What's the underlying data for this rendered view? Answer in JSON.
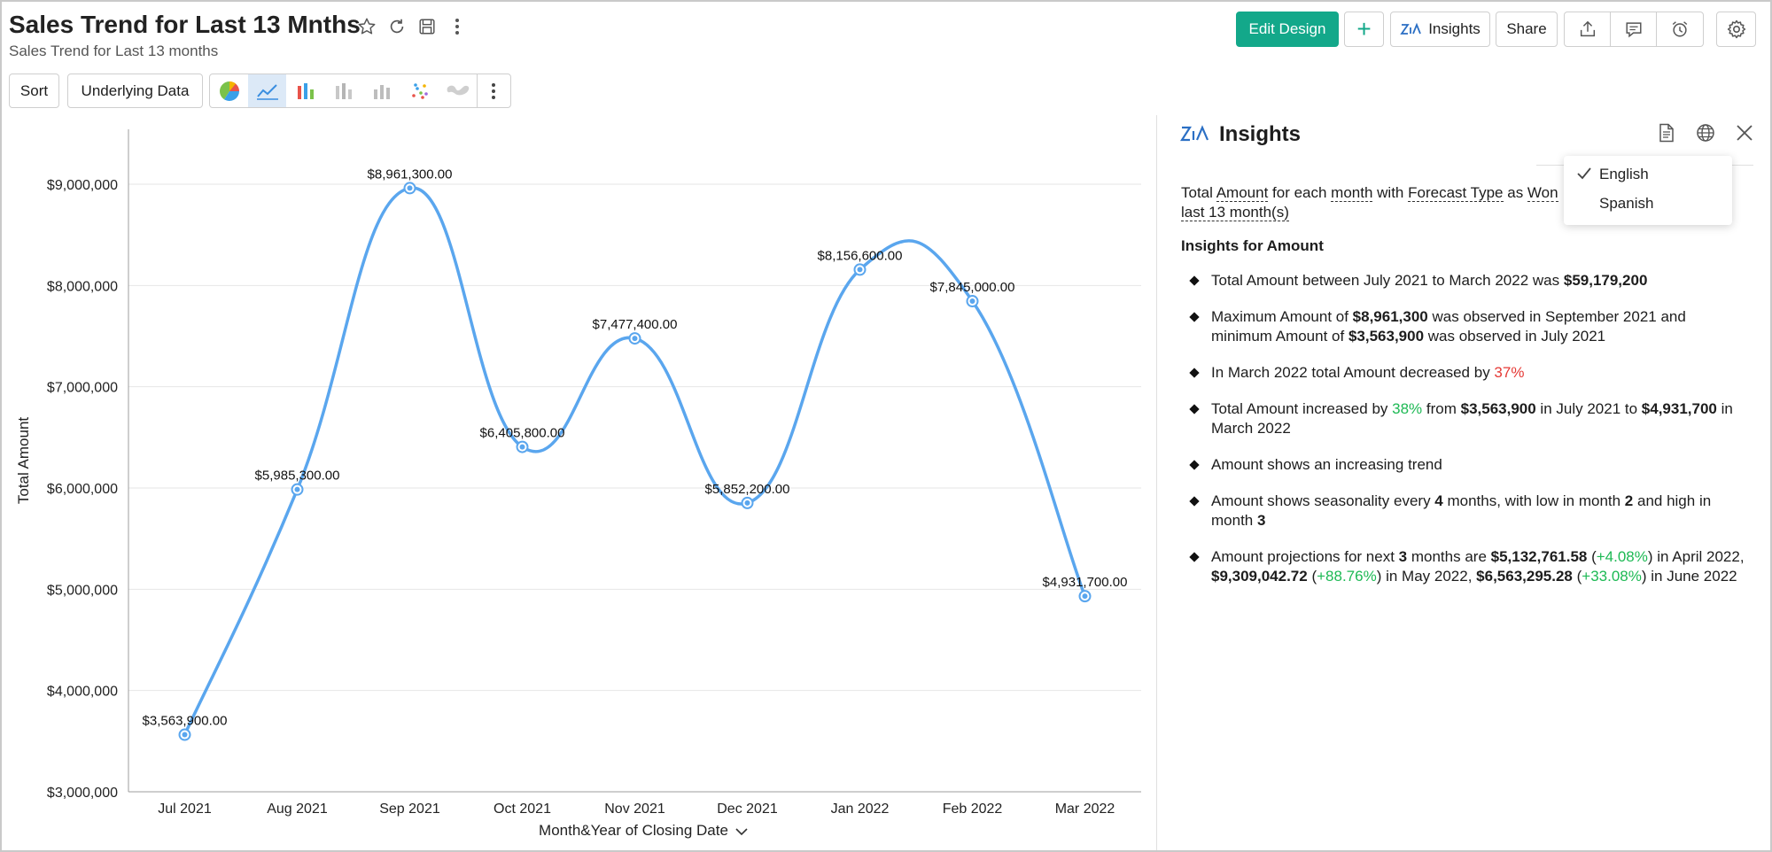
{
  "header": {
    "title": "Sales Trend for Last 13 Mnths",
    "subtitle": "Sales Trend for Last 13 months"
  },
  "toolbar": {
    "edit_design_label": "Edit Design",
    "add_label": "+",
    "insights_label": "Insights",
    "share_label": "Share",
    "sort_label": "Sort",
    "underlying_data_label": "Underlying Data"
  },
  "chart_data": {
    "type": "line",
    "categories": [
      "Jul 2021",
      "Aug 2021",
      "Sep 2021",
      "Oct 2021",
      "Nov 2021",
      "Dec 2021",
      "Jan 2022",
      "Feb 2022",
      "Mar 2022"
    ],
    "values": [
      3563900,
      5985300,
      8961300,
      6405800,
      7477400,
      5852200,
      8156600,
      7845000,
      4931700
    ],
    "data_labels": [
      "$3,563,900.00",
      "$5,985,300.00",
      "$8,961,300.00",
      "$6,405,800.00",
      "$7,477,400.00",
      "$5,852,200.00",
      "$8,156,600.00",
      "$7,845,000.00",
      "$4,931,700.00"
    ],
    "yticks": [
      "$3,000,000",
      "$4,000,000",
      "$5,000,000",
      "$6,000,000",
      "$7,000,000",
      "$8,000,000",
      "$9,000,000"
    ],
    "ylim": [
      3000000,
      9600000
    ],
    "xlabel": "Month&Year of Closing Date",
    "ylabel": "Total Amount",
    "line_color": "#5aa6ee",
    "grid": true
  },
  "insights": {
    "title": "Insights",
    "summary_parts": [
      "Total ",
      "Amount",
      " for each ",
      "month",
      " with ",
      "Forecast Type",
      " as ",
      "Won"
    ],
    "summary_line2": "last 13 month(s)",
    "heading": "Insights for Amount",
    "items": [
      [
        {
          "t": "Total Amount between July 2021 to March 2022 was "
        },
        {
          "t": "$59,179,200",
          "s": "b"
        }
      ],
      [
        {
          "t": "Maximum Amount of "
        },
        {
          "t": "$8,961,300",
          "s": "b"
        },
        {
          "t": " was observed in September 2021 and minimum Amount of "
        },
        {
          "t": "$3,563,900",
          "s": "b"
        },
        {
          "t": " was observed in July 2021"
        }
      ],
      [
        {
          "t": "In March 2022 total Amount decreased by "
        },
        {
          "t": "37%",
          "s": "r"
        }
      ],
      [
        {
          "t": "Total Amount increased by "
        },
        {
          "t": "38%",
          "s": "g"
        },
        {
          "t": " from "
        },
        {
          "t": "$3,563,900",
          "s": "b"
        },
        {
          "t": " in July 2021 to "
        },
        {
          "t": "$4,931,700",
          "s": "b"
        },
        {
          "t": " in March 2022"
        }
      ],
      [
        {
          "t": "Amount shows an increasing trend"
        }
      ],
      [
        {
          "t": "Amount shows seasonality every "
        },
        {
          "t": "4",
          "s": "b"
        },
        {
          "t": " months, with low in month "
        },
        {
          "t": "2",
          "s": "b"
        },
        {
          "t": " and high in month "
        },
        {
          "t": "3",
          "s": "b"
        }
      ],
      [
        {
          "t": "Amount projections for next "
        },
        {
          "t": "3",
          "s": "b"
        },
        {
          "t": " months are "
        },
        {
          "t": "$5,132,761.58",
          "s": "b"
        },
        {
          "t": " ("
        },
        {
          "t": "+4.08%",
          "s": "g"
        },
        {
          "t": ") in April 2022, "
        },
        {
          "t": "$9,309,042.72",
          "s": "b"
        },
        {
          "t": " ("
        },
        {
          "t": "+88.76%",
          "s": "g"
        },
        {
          "t": ") in May 2022, "
        },
        {
          "t": "$6,563,295.28",
          "s": "b"
        },
        {
          "t": " ("
        },
        {
          "t": "+33.08%",
          "s": "g"
        },
        {
          "t": ") in June 2022"
        }
      ]
    ]
  },
  "language_menu": {
    "options": [
      "English",
      "Spanish"
    ],
    "selected": "English"
  },
  "colors": {
    "accent": "#13a88a",
    "line": "#5aa6ee",
    "negative": "#e53935",
    "positive": "#1db954"
  }
}
